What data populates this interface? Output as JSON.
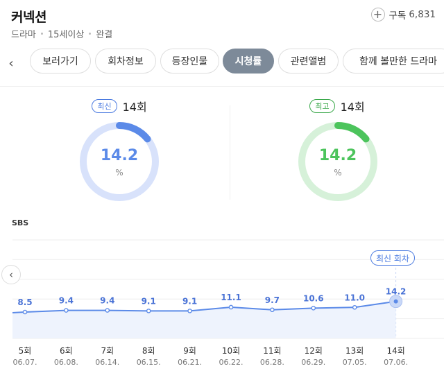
{
  "header": {
    "title": "커넥션",
    "meta": [
      "드라마",
      "15세이상",
      "완결"
    ],
    "subscribe_label": "구독",
    "subscribe_count": "6,831"
  },
  "tabs": [
    {
      "label": "보러가기",
      "active": false
    },
    {
      "label": "회차정보",
      "active": false
    },
    {
      "label": "등장인물",
      "active": false
    },
    {
      "label": "시청률",
      "active": true
    },
    {
      "label": "관련앨범",
      "active": false
    },
    {
      "label": "함께 볼만한 드라마",
      "active": false
    }
  ],
  "ratings": {
    "latest": {
      "badge": "최신",
      "episode": "14회",
      "value": "14.2",
      "unit": "%",
      "fraction": 0.142,
      "color": "#5b8ae8",
      "track": "#d8e2fb"
    },
    "highest": {
      "badge": "최고",
      "episode": "14회",
      "value": "14.2",
      "unit": "%",
      "fraction": 0.142,
      "color": "#4cc45c",
      "track": "#d6f1d9"
    }
  },
  "channel": "SBS",
  "latest_label": "최신 회차",
  "chart_data": {
    "type": "line",
    "x": [
      "5회",
      "6회",
      "7회",
      "8회",
      "9회",
      "10회",
      "11회",
      "12회",
      "13회",
      "14회"
    ],
    "dates": [
      "06.07.",
      "06.08.",
      "06.14.",
      "06.15.",
      "06.21.",
      "06.22.",
      "06.28.",
      "06.29.",
      "07.05.",
      "07.06."
    ],
    "series": [
      {
        "values": [
          8.5,
          9.4,
          9.4,
          9.1,
          9.1,
          11.1,
          9.7,
          10.6,
          11.0,
          14.2
        ]
      }
    ],
    "value_labels": [
      "8.5",
      "9.4",
      "9.4",
      "9.1",
      "9.1",
      "11.1",
      "9.7",
      "10.6",
      "11.0",
      "14.2"
    ],
    "line_color": "#5b8ae8",
    "fill_color": "#eef3fd",
    "grid": true
  }
}
